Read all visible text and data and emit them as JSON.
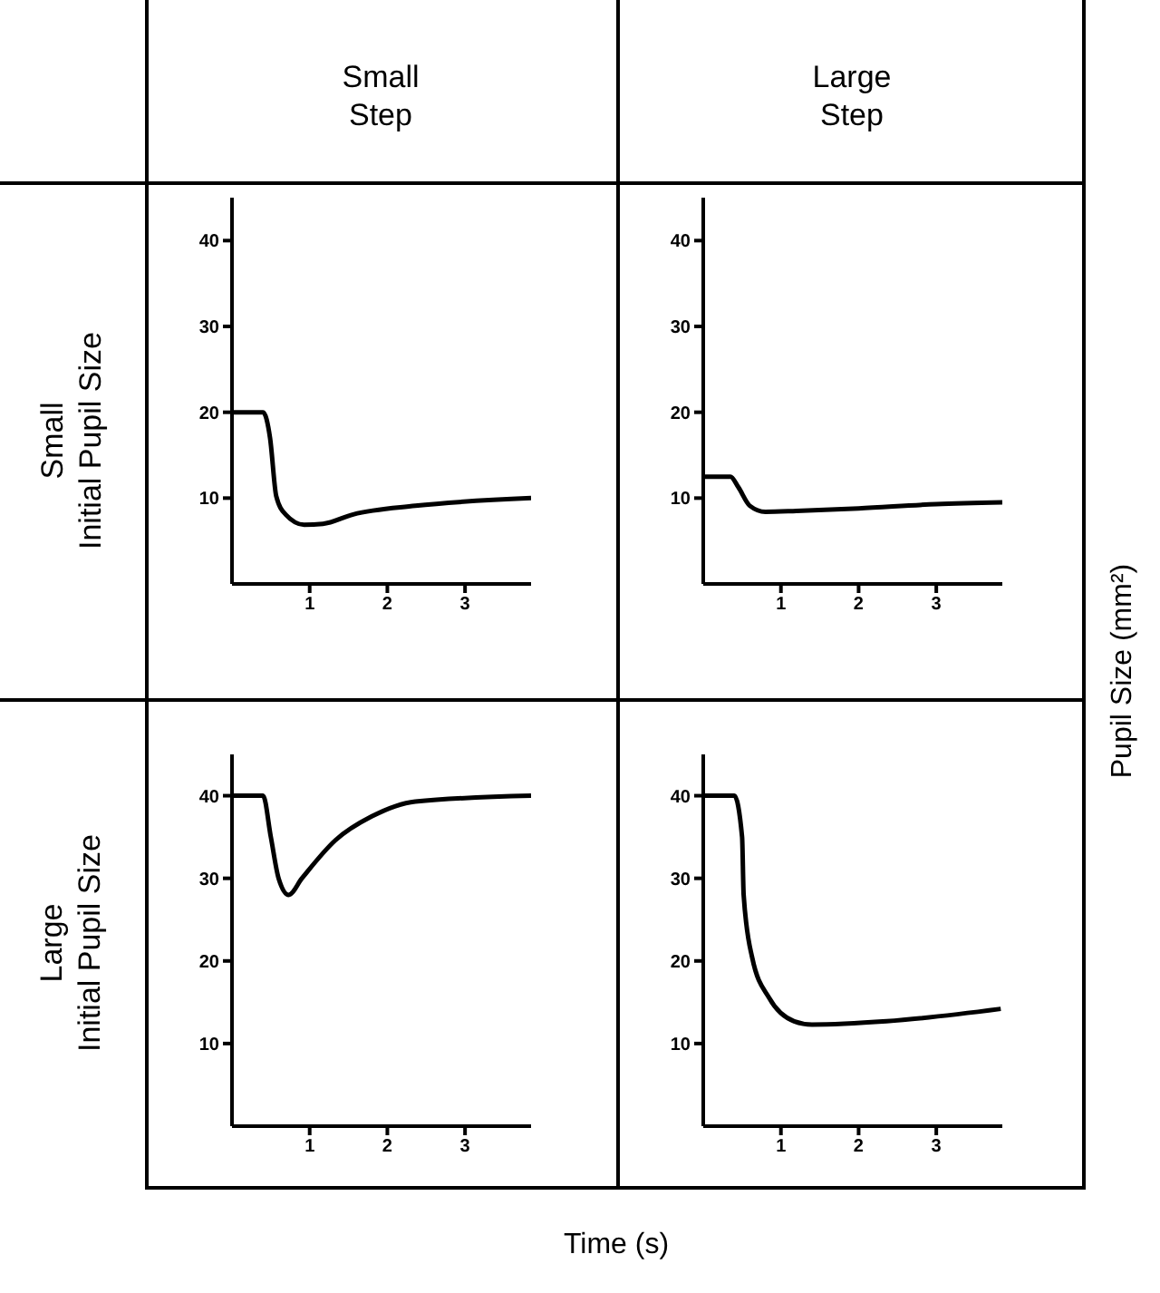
{
  "chart_data": [
    {
      "type": "line",
      "title": "Small Step",
      "ylabel": "Small Initial Pupil Size",
      "x": [
        0,
        0.4,
        0.49,
        0.57,
        0.69,
        0.93,
        1.17,
        1.56,
        2.36,
        3.85
      ],
      "series": [
        {
          "color": "#000000",
          "values": [
            20,
            20,
            17,
            10.2,
            8.1,
            6.9,
            7,
            8.1,
            9.1,
            10
          ]
        }
      ],
      "xlim": [
        0,
        3.85
      ],
      "ylim": [
        0,
        45
      ],
      "xticks": [
        1,
        2,
        3
      ],
      "yticks": [
        10,
        20,
        30,
        40
      ]
    },
    {
      "type": "line",
      "title": "Large Step",
      "y2label": "Pupil Size (mm²)",
      "x": [
        0,
        0.35,
        0.45,
        0.6,
        0.8,
        1.2,
        2,
        3,
        3.85
      ],
      "series": [
        {
          "color": "#000000",
          "values": [
            12.5,
            12.5,
            11.3,
            9.1,
            8.4,
            8.5,
            8.8,
            9.3,
            9.5
          ]
        }
      ],
      "xlim": [
        0,
        3.85
      ],
      "ylim": [
        0,
        45
      ],
      "xticks": [
        1,
        2,
        3
      ],
      "yticks": [
        10,
        20,
        30,
        40
      ]
    },
    {
      "type": "line",
      "ylabel": "Large Initial Pupil Size",
      "x": [
        0,
        0.4,
        0.5,
        0.6,
        0.73,
        0.9,
        1.33,
        1.8,
        2.36,
        3.85
      ],
      "series": [
        {
          "color": "#000000",
          "values": [
            40,
            40,
            35,
            30,
            28,
            30,
            34.6,
            37.5,
            39.3,
            40
          ]
        }
      ],
      "xlim": [
        0,
        3.85
      ],
      "ylim": [
        0,
        45
      ],
      "xticks": [
        1,
        2,
        3
      ],
      "yticks": [
        10,
        20,
        30,
        40
      ]
    },
    {
      "type": "line",
      "xlabel": "Time (s)",
      "x": [
        0,
        0.4,
        0.5,
        0.52,
        0.63,
        0.85,
        1.17,
        1.4,
        2.36,
        3.83
      ],
      "series": [
        {
          "color": "#000000",
          "values": [
            40,
            40,
            35,
            28,
            20.4,
            15.5,
            12.7,
            12.3,
            12.7,
            14.2
          ]
        }
      ],
      "xlim": [
        0,
        3.85
      ],
      "ylim": [
        0,
        45
      ],
      "xticks": [
        1,
        2,
        3
      ],
      "yticks": [
        10,
        20,
        30,
        40
      ]
    }
  ]
}
